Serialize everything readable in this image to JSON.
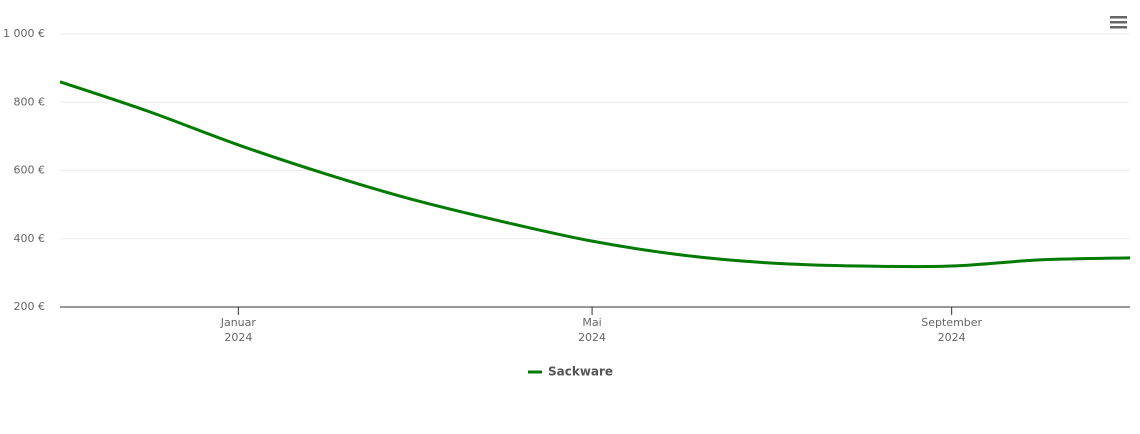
{
  "chart_data": {
    "type": "line",
    "x": [
      "2023-11",
      "2023-12",
      "2024-01",
      "2024-02",
      "2024-03",
      "2024-04",
      "2024-05",
      "2024-06",
      "2024-07",
      "2024-08",
      "2024-09",
      "2024-10",
      "2024-11"
    ],
    "series": [
      {
        "name": "Sackware",
        "color": "#007a00",
        "values": [
          860,
          774,
          675,
          587,
          514,
          449,
          393,
          352,
          329,
          320,
          320,
          338,
          344
        ]
      }
    ],
    "xlim": [
      "2023-11",
      "2024-11"
    ],
    "xticks": [
      {
        "value": "2024-01",
        "label": "Januar 2024"
      },
      {
        "value": "2024-05",
        "label": "Mai 2024"
      },
      {
        "value": "2024-09",
        "label": "September 2024"
      }
    ],
    "ylim": [
      200,
      1000
    ],
    "yticks": [
      {
        "value": 200,
        "label": "200 €"
      },
      {
        "value": 400,
        "label": "400 €"
      },
      {
        "value": 600,
        "label": "600 €"
      },
      {
        "value": 800,
        "label": "800 €"
      },
      {
        "value": 1000,
        "label": "1 000 €"
      }
    ],
    "grid": true,
    "legend": "bottom"
  }
}
